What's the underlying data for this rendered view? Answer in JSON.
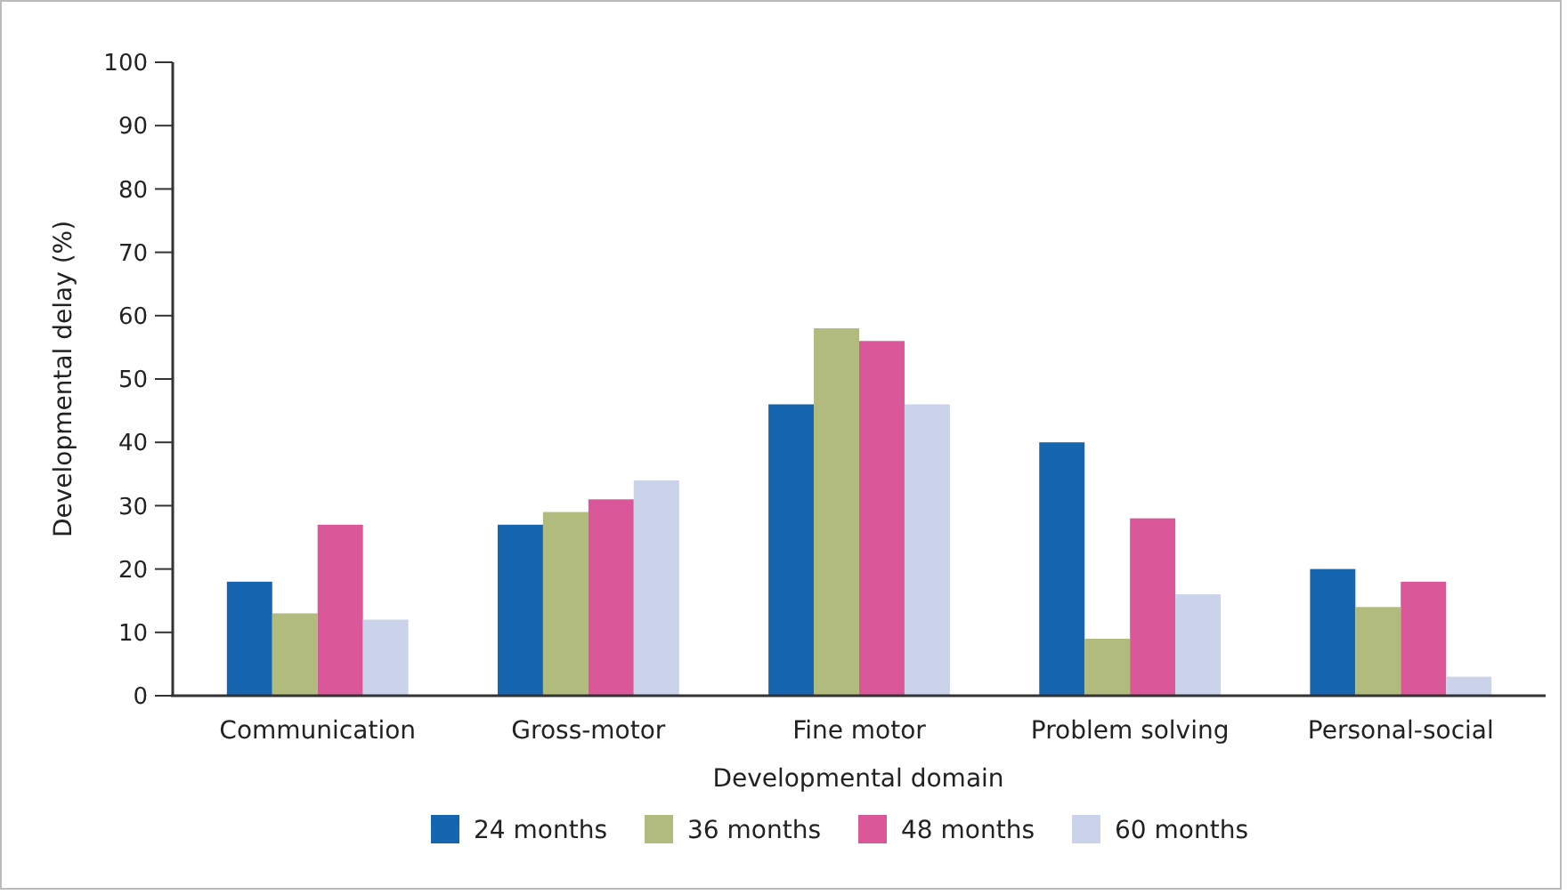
{
  "chart_data": {
    "type": "bar",
    "xlabel": "Developmental domain",
    "ylabel": "Developmental delay (%)",
    "categories": [
      "Communication",
      "Gross-motor",
      "Fine motor",
      "Problem solving",
      "Personal-social"
    ],
    "series": [
      {
        "name": "24 months",
        "color": "#1565b0",
        "values": [
          18,
          27,
          46,
          40,
          20
        ]
      },
      {
        "name": "36 months",
        "color": "#b1bb7e",
        "values": [
          13,
          29,
          58,
          9,
          14
        ]
      },
      {
        "name": "48 months",
        "color": "#da5799",
        "values": [
          27,
          31,
          56,
          28,
          18
        ]
      },
      {
        "name": "60 months",
        "color": "#cad3ea",
        "values": [
          12,
          34,
          46,
          16,
          3
        ]
      }
    ],
    "ylim": [
      0,
      100
    ],
    "yticks": [
      0,
      10,
      20,
      30,
      40,
      50,
      60,
      70,
      80,
      90,
      100
    ],
    "grid": false,
    "legend": "bottom"
  }
}
